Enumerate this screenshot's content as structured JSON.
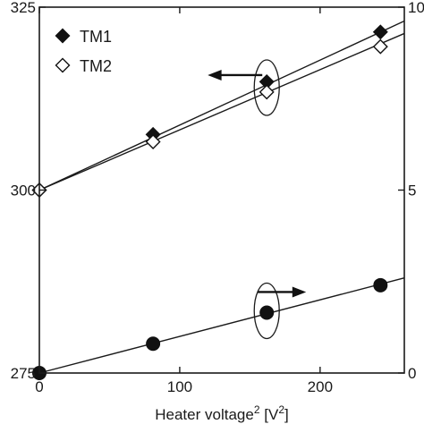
{
  "chart_data": {
    "type": "scatter",
    "title": "",
    "xlabel": "Heater voltage",
    "xlabel_sup": "2",
    "xlabel_unit_open": " [V",
    "xlabel_unit_sup": "2",
    "xlabel_unit_close": "]",
    "xlim": [
      0,
      260
    ],
    "ylim_left": [
      275,
      325
    ],
    "ylim_right": [
      0,
      10
    ],
    "x_ticks": [
      "0",
      "100",
      "200"
    ],
    "y_left_ticks": [
      "275",
      "300",
      "325"
    ],
    "y_right_ticks": [
      "0",
      "5",
      "10"
    ],
    "grid": false,
    "legend_position": "top-left",
    "series": [
      {
        "name": "TM1",
        "axis": "left",
        "marker": "filled-diamond",
        "x": [
          0,
          81,
          162,
          243
        ],
        "y": [
          300,
          307.6,
          314.8,
          321.6
        ],
        "fit": {
          "x": [
            0,
            260
          ],
          "y": [
            300,
            323.1
          ]
        }
      },
      {
        "name": "TM2",
        "axis": "left",
        "marker": "open-diamond",
        "x": [
          0,
          81,
          162,
          243
        ],
        "y": [
          300,
          306.6,
          313.4,
          319.6
        ],
        "fit": {
          "x": [
            0,
            260
          ],
          "y": [
            300,
            321.4
          ]
        }
      },
      {
        "axis": "right",
        "marker": "filled-circle",
        "x": [
          0,
          81,
          162,
          243
        ],
        "y": [
          0,
          0.8,
          1.65,
          2.4
        ],
        "fit": {
          "x": [
            0,
            260
          ],
          "y": [
            0,
            2.6
          ]
        }
      }
    ],
    "annotations": [
      {
        "type": "ellipse-arrow",
        "points_to": "left",
        "around_x": 162,
        "around_y": 314
      },
      {
        "type": "ellipse-arrow",
        "points_to": "right",
        "around_x": 162,
        "around_y": 1.7
      }
    ]
  }
}
